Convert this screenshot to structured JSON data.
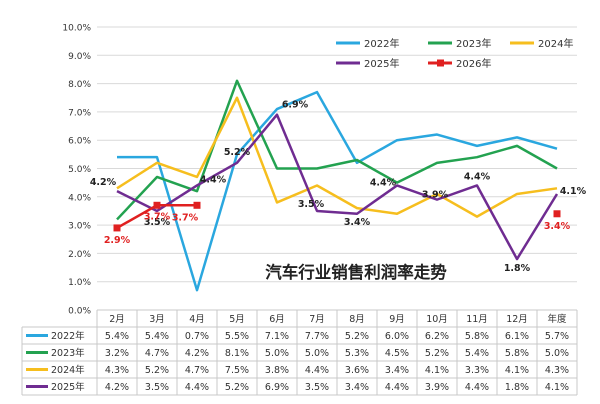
{
  "chart_data": {
    "type": "line",
    "title": "汽车行业销售利润率走势",
    "categories": [
      "2月",
      "3月",
      "4月",
      "5月",
      "6月",
      "7月",
      "8月",
      "9月",
      "10月",
      "11月",
      "12月",
      "年度"
    ],
    "ylim": [
      0,
      10
    ],
    "ytick_labels": [
      "0.0%",
      "1.0%",
      "2.0%",
      "3.0%",
      "4.0%",
      "5.0%",
      "6.0%",
      "7.0%",
      "8.0%",
      "9.0%",
      "10.0%"
    ],
    "grid": true,
    "legend_position": "top-right",
    "series": [
      {
        "name": "2022年",
        "color": "#2AA7DF",
        "values": [
          5.4,
          5.4,
          0.7,
          5.5,
          7.1,
          7.7,
          5.2,
          6.0,
          6.2,
          5.8,
          6.1,
          5.7
        ],
        "table": [
          "5.4%",
          "5.4%",
          "0.7%",
          "5.5%",
          "7.1%",
          "7.7%",
          "5.2%",
          "6.0%",
          "6.2%",
          "5.8%",
          "6.1%",
          "5.7%"
        ]
      },
      {
        "name": "2023年",
        "color": "#23A250",
        "values": [
          3.2,
          4.7,
          4.2,
          8.1,
          5.0,
          5.0,
          5.3,
          4.5,
          5.2,
          5.4,
          5.8,
          5.0
        ],
        "table": [
          "3.2%",
          "4.7%",
          "4.2%",
          "8.1%",
          "5.0%",
          "5.0%",
          "5.3%",
          "4.5%",
          "5.2%",
          "5.4%",
          "5.8%",
          "5.0%"
        ]
      },
      {
        "name": "2024年",
        "color": "#F6BE1E",
        "values": [
          4.3,
          5.2,
          4.7,
          7.5,
          3.8,
          4.4,
          3.6,
          3.4,
          4.1,
          3.3,
          4.1,
          4.3
        ],
        "table": [
          "4.3%",
          "5.2%",
          "4.7%",
          "7.5%",
          "3.8%",
          "4.4%",
          "3.6%",
          "3.4%",
          "4.1%",
          "3.3%",
          "4.1%",
          "4.3%"
        ]
      },
      {
        "name": "2025年",
        "color": "#6F2C91",
        "values": [
          4.2,
          3.5,
          4.4,
          5.2,
          6.9,
          3.5,
          3.4,
          4.4,
          3.9,
          4.4,
          1.8,
          4.1
        ],
        "table": [
          "4.2%",
          "3.5%",
          "4.4%",
          "5.2%",
          "6.9%",
          "3.5%",
          "3.4%",
          "4.4%",
          "3.9%",
          "4.4%",
          "1.8%",
          "4.1%"
        ]
      },
      {
        "name": "2026年",
        "color": "#E02020",
        "values": [
          2.9,
          3.7,
          3.7,
          null,
          null,
          null,
          null,
          null,
          null,
          null,
          null,
          3.4
        ],
        "annual_standalone": true
      }
    ],
    "annotations_purple": [
      {
        "i": 0,
        "text": "4.2%"
      },
      {
        "i": 1,
        "text": "3.5%"
      },
      {
        "i": 2,
        "text": "4.4%"
      },
      {
        "i": 3,
        "text": "5.2%"
      },
      {
        "i": 4,
        "text": "6.9%"
      },
      {
        "i": 5,
        "text": "3.5%"
      },
      {
        "i": 6,
        "text": "3.4%"
      },
      {
        "i": 7,
        "text": "4.4%"
      },
      {
        "i": 8,
        "text": "3.9%"
      },
      {
        "i": 9,
        "text": "4.4%"
      },
      {
        "i": 10,
        "text": "1.8%"
      },
      {
        "i": 11,
        "text": "4.1%"
      }
    ],
    "annotations_red": [
      {
        "i": 0,
        "text": "2.9%"
      },
      {
        "i": 1,
        "text": "3.7%"
      },
      {
        "i": 2,
        "text": "3.7%"
      },
      {
        "i": 11,
        "text": "3.4%"
      }
    ]
  }
}
